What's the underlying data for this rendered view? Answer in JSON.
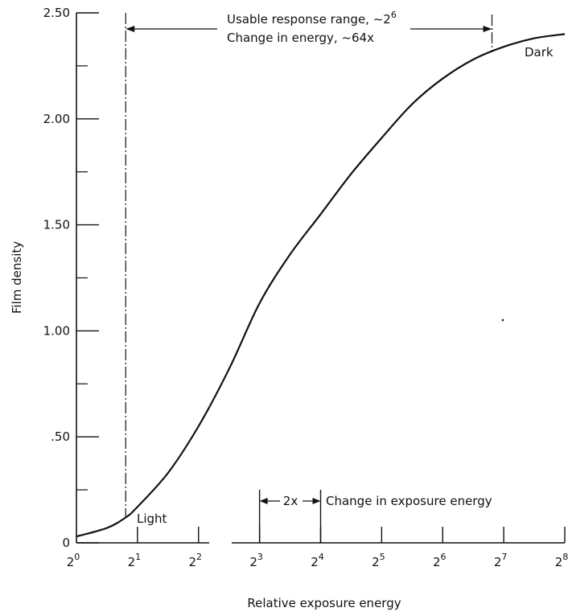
{
  "chart_data": {
    "type": "line",
    "title": "",
    "xlabel": "Relative exposure energy",
    "ylabel": "Film density",
    "x_scale": "log2",
    "xlim": [
      1,
      256
    ],
    "ylim": [
      0,
      2.5
    ],
    "x_ticks": [
      {
        "value": 1,
        "base": "2",
        "exp": "0"
      },
      {
        "value": 2,
        "base": "2",
        "exp": "1"
      },
      {
        "value": 4,
        "base": "2",
        "exp": "2"
      },
      {
        "value": 8,
        "base": "2",
        "exp": "3"
      },
      {
        "value": 16,
        "base": "2",
        "exp": "4"
      },
      {
        "value": 32,
        "base": "2",
        "exp": "5"
      },
      {
        "value": 64,
        "base": "2",
        "exp": "6"
      },
      {
        "value": 128,
        "base": "2",
        "exp": "7"
      },
      {
        "value": 256,
        "base": "2",
        "exp": "8"
      }
    ],
    "y_ticks": [
      {
        "value": 0,
        "label": "0"
      },
      {
        "value": 0.5,
        "label": ".50"
      },
      {
        "value": 1.0,
        "label": "1.00"
      },
      {
        "value": 1.5,
        "label": "1.50"
      },
      {
        "value": 2.0,
        "label": "2.00"
      },
      {
        "value": 2.5,
        "label": "2.50"
      }
    ],
    "y_minor_ticks": [
      0.25,
      0.75,
      1.25,
      1.75,
      2.25
    ],
    "grid": false,
    "series": [
      {
        "x": [
          1.0,
          1.414,
          1.75,
          2.0,
          2.83,
          4.0,
          5.66,
          8.0,
          11.3,
          16.0,
          22.6,
          32.0,
          45.3,
          64.0,
          90.5,
          128.0,
          181.0,
          256.0
        ],
        "y": [
          0.03,
          0.07,
          0.12,
          0.17,
          0.33,
          0.55,
          0.82,
          1.13,
          1.36,
          1.55,
          1.74,
          1.91,
          2.07,
          2.19,
          2.28,
          2.34,
          2.38,
          2.4
        ]
      }
    ],
    "annotations": {
      "usable_range_line1": "Usable response range, ~2",
      "usable_range_line1_exp": "6",
      "usable_range_line2": "Change in energy, ~64x",
      "usable_range_start_x": 1.75,
      "usable_range_end_x": 112,
      "light_label": "Light",
      "dark_label": "Dark",
      "step_label": "2x",
      "step_start_x": 8,
      "step_end_x": 16,
      "step_description": "Change in exposure energy"
    }
  }
}
